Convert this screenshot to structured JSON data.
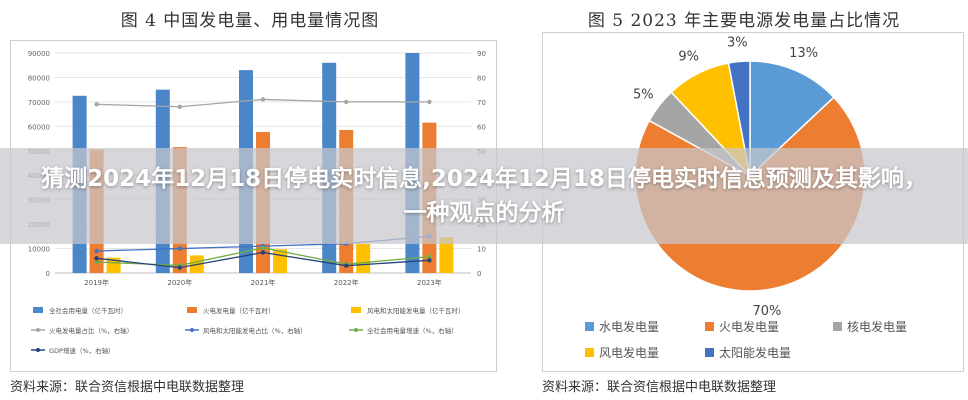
{
  "headline": "猜测2024年12月18日停电实时信息,2024年12月18日停电实时信息预测及其影响，一种观点的分析",
  "chart_data": [
    {
      "type": "bar",
      "title": "图 4 中国发电量、用电量情况图",
      "source": "资料来源：联合资信根据中电联数据整理",
      "categories": [
        "2019年",
        "2020年",
        "2021年",
        "2022年",
        "2023年"
      ],
      "y_left_ticks": [
        "0",
        "10000",
        "20000",
        "30000",
        "40000",
        "50000",
        "60000",
        "70000",
        "80000",
        "90000"
      ],
      "y_right_ticks": [
        "0",
        "10",
        "20",
        "30",
        "40",
        "50",
        "60",
        "70",
        "80",
        "90"
      ],
      "ylim_left": [
        0,
        90000
      ],
      "ylim_right": [
        0,
        90
      ],
      "grid": true,
      "legend_position": "bottom",
      "series": [
        {
          "name": "全社会用电量（亿千瓦时）",
          "type": "bar",
          "axis": "left",
          "color": "#4a86c8",
          "values": [
            72500,
            75000,
            83000,
            86000,
            90000
          ]
        },
        {
          "name": "火电发电量（亿千瓦时）",
          "type": "bar",
          "axis": "left",
          "color": "#ed7d31",
          "values": [
            50500,
            51500,
            57700,
            58500,
            61500
          ]
        },
        {
          "name": "风电和太阳能发电量（亿千瓦时）",
          "type": "bar",
          "axis": "left",
          "color": "#ffc000",
          "values": [
            6300,
            7200,
            9700,
            11900,
            14700
          ]
        },
        {
          "name": "火电发电量占比（%，右轴）",
          "type": "line",
          "axis": "right",
          "color": "#a5a5a5",
          "values": [
            69,
            68,
            71,
            70,
            70
          ]
        },
        {
          "name": "风电和太阳能发电占比（%，右轴）",
          "type": "line",
          "axis": "right",
          "color": "#4472c4",
          "values": [
            9,
            10,
            11,
            12,
            15
          ]
        },
        {
          "name": "全社会用电量增速（%，右轴）",
          "type": "line",
          "axis": "right",
          "color": "#70ad47",
          "values": [
            4.5,
            3.1,
            10.3,
            3.6,
            6.7
          ]
        },
        {
          "name": "GDP增速（%，右轴）",
          "type": "line",
          "axis": "right",
          "color": "#264478",
          "values": [
            6.0,
            2.2,
            8.4,
            3.0,
            5.2
          ]
        }
      ]
    },
    {
      "type": "pie",
      "title": "图 5 2023 年主要电源发电量占比情况",
      "source": "资料来源：联合资信根据中电联数据整理",
      "legend_position": "bottom",
      "slices": [
        {
          "name": "水电发电量",
          "value": 13,
          "label": "13%",
          "color": "#5b9bd5"
        },
        {
          "name": "火电发电量",
          "value": 70,
          "label": "70%",
          "color": "#ed7d31"
        },
        {
          "name": "核电发电量",
          "value": 5,
          "label": "5%",
          "color": "#a5a5a5"
        },
        {
          "name": "风电发电量",
          "value": 9,
          "label": "9%",
          "color": "#ffc000"
        },
        {
          "name": "太阳能发电量",
          "value": 3,
          "label": "3%",
          "color": "#4472c4"
        }
      ]
    }
  ]
}
